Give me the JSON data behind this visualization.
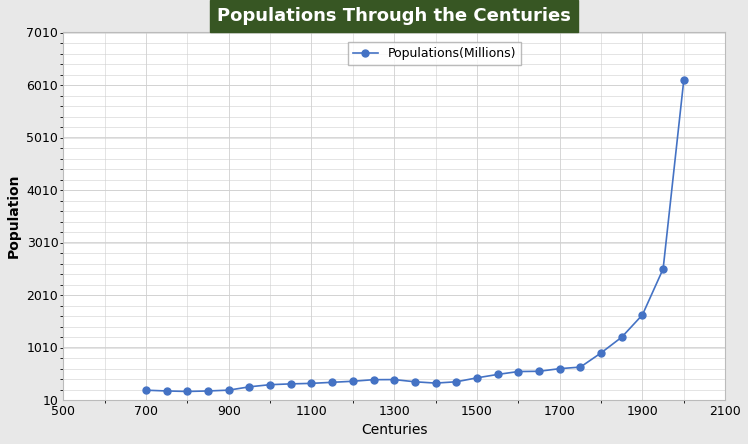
{
  "x": [
    700,
    750,
    800,
    850,
    900,
    950,
    1000,
    1050,
    1100,
    1150,
    1200,
    1250,
    1300,
    1350,
    1400,
    1450,
    1500,
    1550,
    1600,
    1650,
    1700,
    1750,
    1800,
    1850,
    1900,
    1950,
    2000
  ],
  "y": [
    190,
    175,
    166,
    175,
    191,
    254,
    295,
    310,
    320,
    340,
    360,
    390,
    392,
    350,
    325,
    350,
    425,
    490,
    545,
    550,
    600,
    630,
    900,
    1200,
    1625,
    2500,
    6100
  ],
  "title": "Populations Through the Centuries",
  "xlabel": "Centuries",
  "ylabel": "Population",
  "legend_label": "Populations(Millions)",
  "line_color": "#4472C4",
  "marker": "o",
  "marker_size": 5,
  "title_bg_color": "#375623",
  "title_text_color": "#FFFFFF",
  "xlim": [
    500,
    2100
  ],
  "ylim": [
    10,
    7010
  ],
  "xticks": [
    500,
    700,
    900,
    1100,
    1300,
    1500,
    1700,
    1900,
    2100
  ],
  "yticks": [
    10,
    1010,
    2010,
    3010,
    4010,
    5010,
    6010,
    7010
  ],
  "grid_color": "#D0D0D0",
  "background_color": "#FFFFFF",
  "fig_bg_color": "#E8E8E8"
}
